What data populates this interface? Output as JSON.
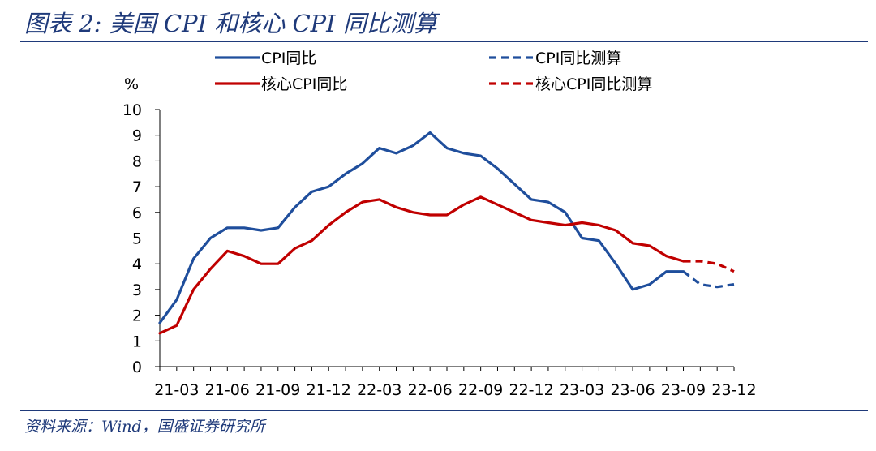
{
  "figure": {
    "title": "图表 2:  美国 CPI 和核心 CPI 同比测算",
    "source": "资料来源：Wind，国盛证券研究所"
  },
  "chart_data": {
    "type": "line",
    "ylabel": "%",
    "ylim": [
      0,
      10
    ],
    "yticks": [
      0,
      1,
      2,
      3,
      4,
      5,
      6,
      7,
      8,
      9,
      10
    ],
    "xticks": [
      "21-03",
      "21-06",
      "21-09",
      "21-12",
      "22-03",
      "22-06",
      "22-09",
      "22-12",
      "23-03",
      "23-06",
      "23-09",
      "23-12"
    ],
    "x": [
      "21-02",
      "21-03",
      "21-04",
      "21-05",
      "21-06",
      "21-07",
      "21-08",
      "21-09",
      "21-10",
      "21-11",
      "21-12",
      "22-01",
      "22-02",
      "22-03",
      "22-04",
      "22-05",
      "22-06",
      "22-07",
      "22-08",
      "22-09",
      "22-10",
      "22-11",
      "22-12",
      "23-01",
      "23-02",
      "23-03",
      "23-04",
      "23-05",
      "23-06",
      "23-07",
      "23-08",
      "23-09",
      "23-10",
      "23-11",
      "23-12"
    ],
    "legend_position": "top",
    "grid": false,
    "series": [
      {
        "name": "CPI同比",
        "style": "solid",
        "color": "#1f4e9c",
        "values": [
          1.7,
          2.6,
          4.2,
          5.0,
          5.4,
          5.4,
          5.3,
          5.4,
          6.2,
          6.8,
          7.0,
          7.5,
          7.9,
          8.5,
          8.3,
          8.6,
          9.1,
          8.5,
          8.3,
          8.2,
          7.7,
          7.1,
          6.5,
          6.4,
          6.0,
          5.0,
          4.9,
          4.0,
          3.0,
          3.2,
          3.7,
          3.7,
          null,
          null,
          null
        ]
      },
      {
        "name": "CPI同比测算",
        "style": "dashed",
        "color": "#1f4e9c",
        "values": [
          null,
          null,
          null,
          null,
          null,
          null,
          null,
          null,
          null,
          null,
          null,
          null,
          null,
          null,
          null,
          null,
          null,
          null,
          null,
          null,
          null,
          null,
          null,
          null,
          null,
          null,
          null,
          null,
          null,
          null,
          null,
          3.7,
          3.2,
          3.1,
          3.2
        ]
      },
      {
        "name": "核心CPI同比",
        "style": "solid",
        "color": "#c00000",
        "values": [
          1.3,
          1.6,
          3.0,
          3.8,
          4.5,
          4.3,
          4.0,
          4.0,
          4.6,
          4.9,
          5.5,
          6.0,
          6.4,
          6.5,
          6.2,
          6.0,
          5.9,
          5.9,
          6.3,
          6.6,
          6.3,
          6.0,
          5.7,
          5.6,
          5.5,
          5.6,
          5.5,
          5.3,
          4.8,
          4.7,
          4.3,
          4.1,
          null,
          null,
          null
        ]
      },
      {
        "name": "核心CPI同比测算",
        "style": "dashed",
        "color": "#c00000",
        "values": [
          null,
          null,
          null,
          null,
          null,
          null,
          null,
          null,
          null,
          null,
          null,
          null,
          null,
          null,
          null,
          null,
          null,
          null,
          null,
          null,
          null,
          null,
          null,
          null,
          null,
          null,
          null,
          null,
          null,
          null,
          null,
          4.1,
          4.1,
          4.0,
          3.7
        ]
      }
    ]
  }
}
